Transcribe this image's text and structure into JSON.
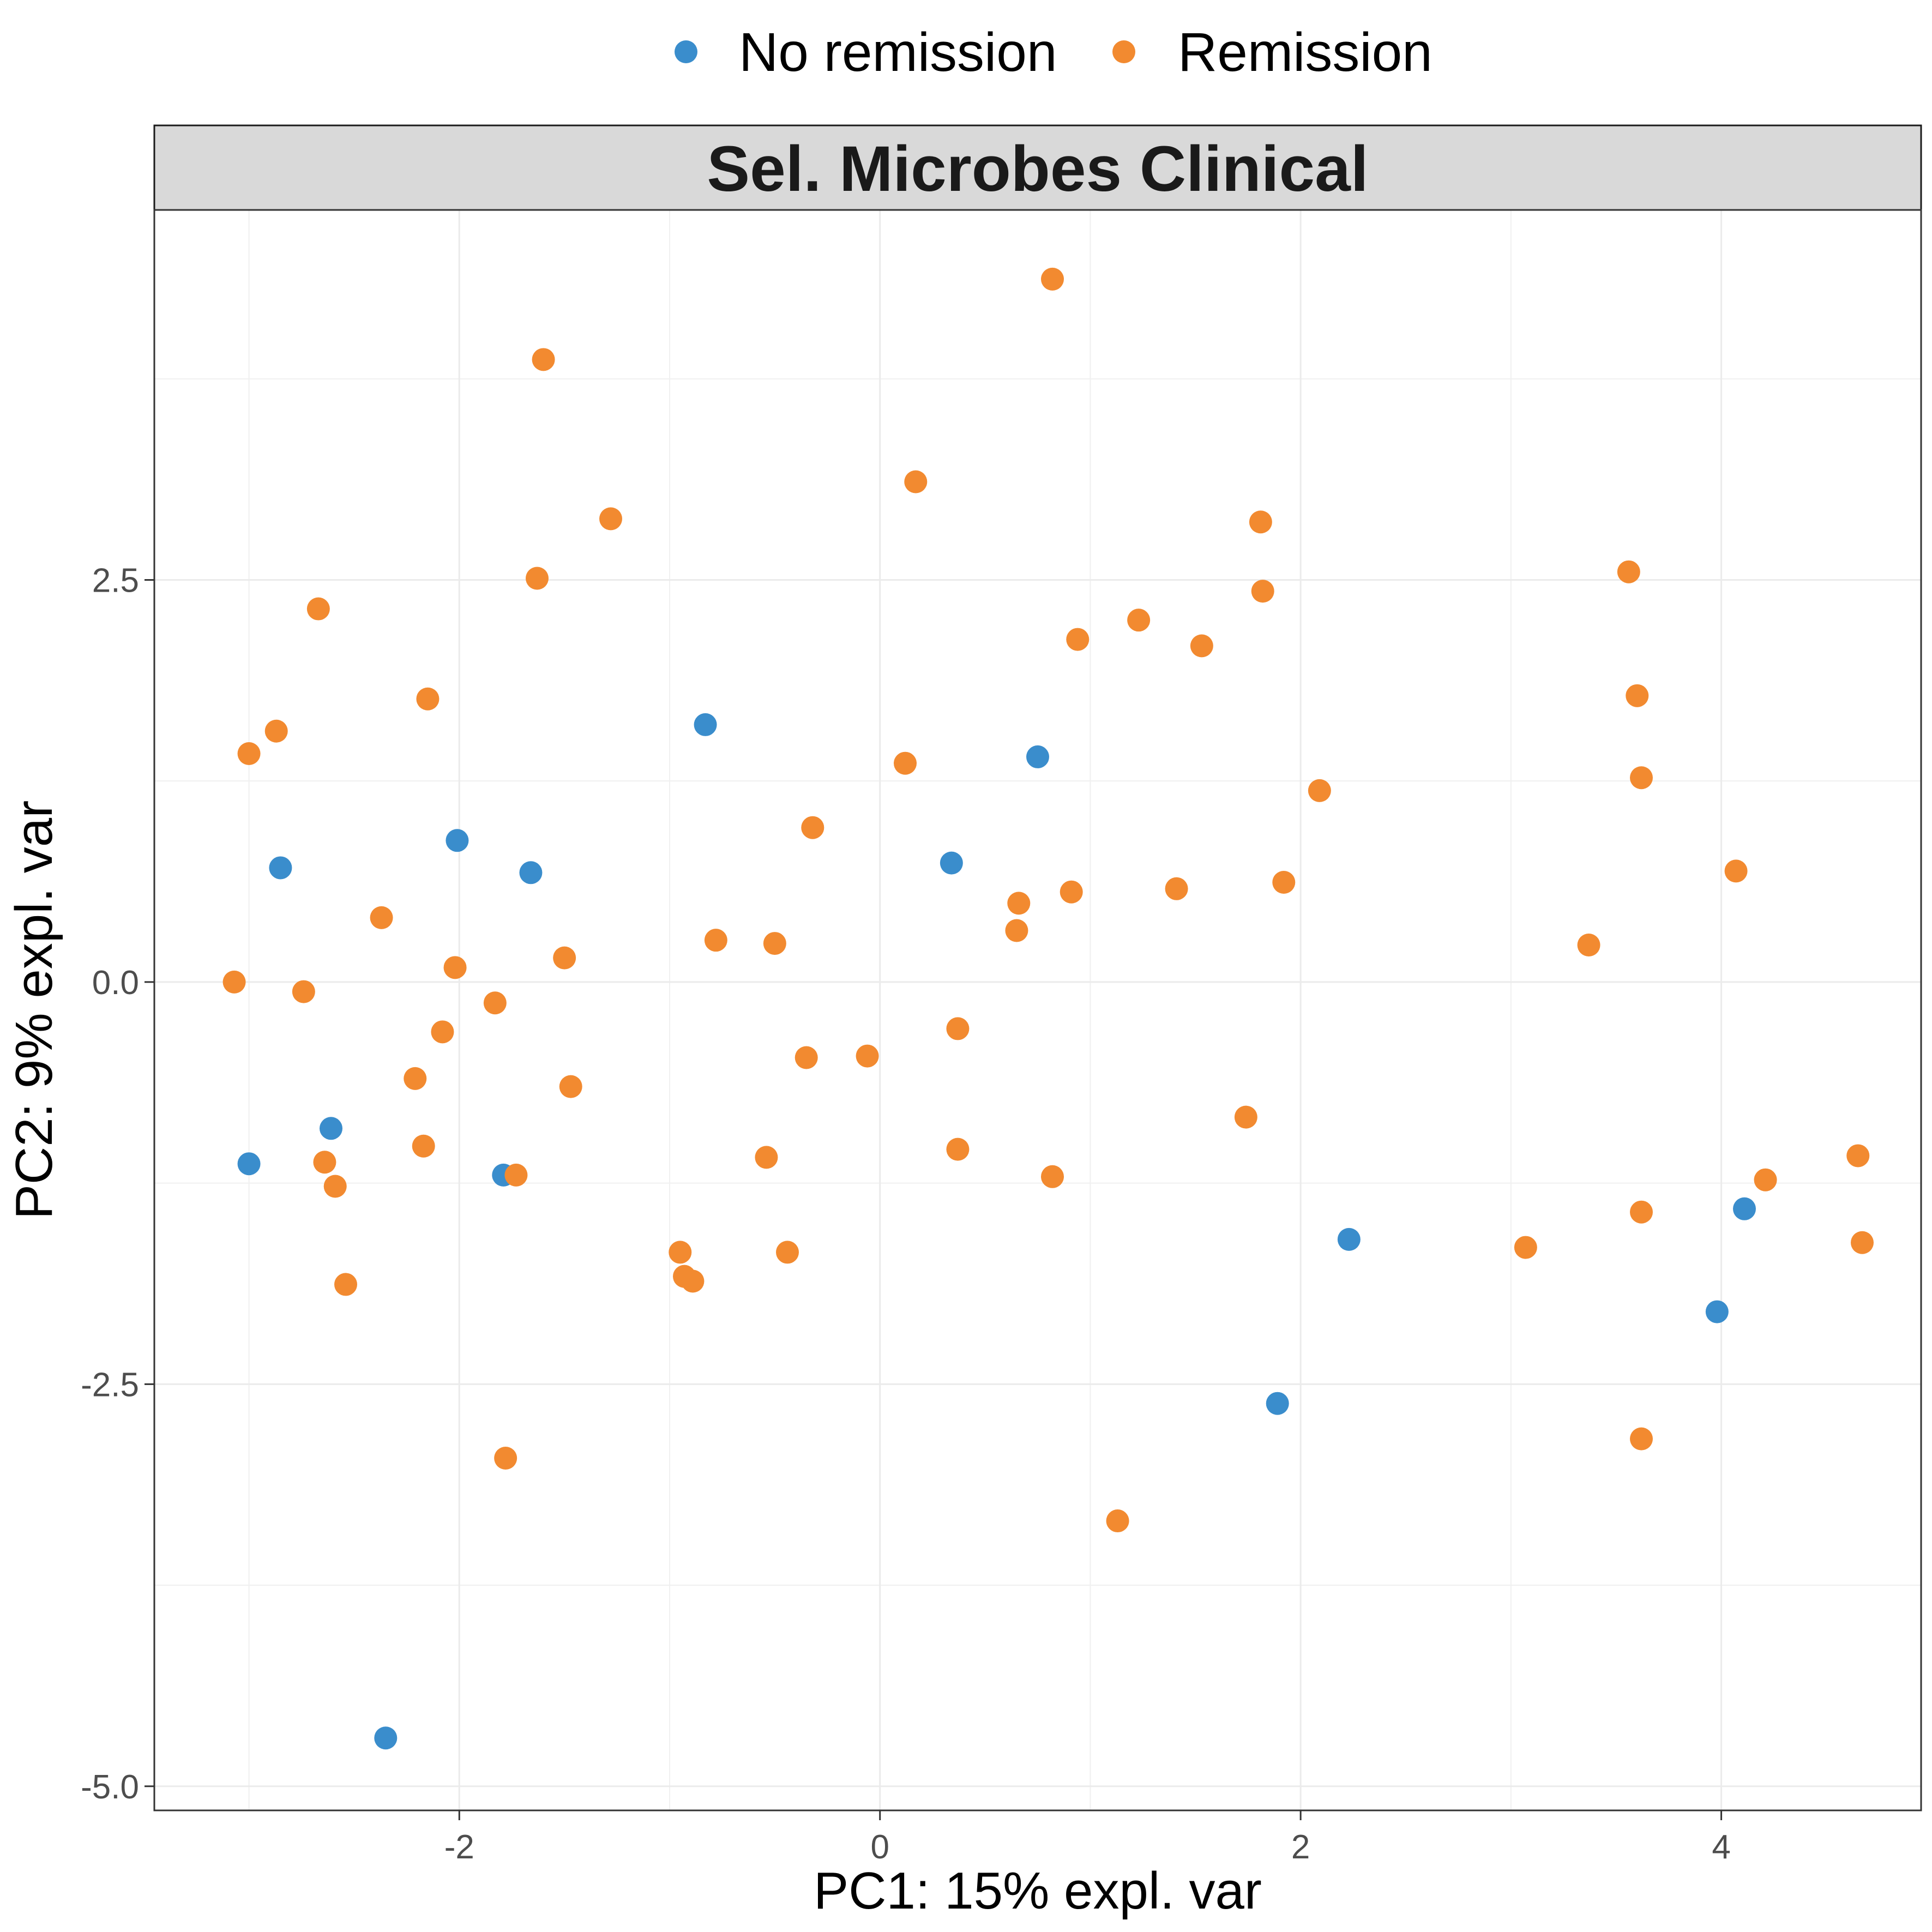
{
  "chart_data": {
    "type": "scatter",
    "title": "Sel. Microbes Clinical",
    "xlabel": "PC1: 15% expl. var",
    "ylabel": "PC2: 9% expl. var",
    "xlim": [
      -3.45,
      4.95
    ],
    "ylim": [
      -5.15,
      4.8
    ],
    "x_ticks": [
      -2,
      0,
      2,
      4
    ],
    "y_ticks": [
      -5.0,
      -2.5,
      0.0,
      2.5
    ],
    "x_tick_labels": [
      "-2",
      "0",
      "2",
      "4"
    ],
    "y_tick_labels": [
      "-5.0",
      "-2.5",
      "0.0",
      "2.5"
    ],
    "grid": true,
    "legend_position": "top",
    "series": [
      {
        "name": "No remission",
        "color": "#3a8dcc",
        "points": [
          [
            -3.0,
            -1.13
          ],
          [
            -2.85,
            0.71
          ],
          [
            -2.61,
            -0.91
          ],
          [
            -2.35,
            -4.7
          ],
          [
            -2.01,
            0.88
          ],
          [
            -1.66,
            0.68
          ],
          [
            -1.79,
            -1.2
          ],
          [
            -0.83,
            1.6
          ],
          [
            0.34,
            0.74
          ],
          [
            0.75,
            1.4
          ],
          [
            2.23,
            -1.6
          ],
          [
            1.89,
            -2.62
          ],
          [
            3.98,
            -2.05
          ],
          [
            4.11,
            -1.41
          ]
        ]
      },
      {
        "name": "Remission",
        "color": "#f28a30",
        "points": [
          [
            -3.07,
            0.0
          ],
          [
            -3.0,
            1.42
          ],
          [
            -2.87,
            1.56
          ],
          [
            -2.74,
            -0.06
          ],
          [
            -2.67,
            2.32
          ],
          [
            -2.64,
            -1.12
          ],
          [
            -2.59,
            -1.27
          ],
          [
            -2.54,
            -1.88
          ],
          [
            -2.37,
            0.4
          ],
          [
            -2.21,
            -0.6
          ],
          [
            -2.17,
            -1.02
          ],
          [
            -2.15,
            1.76
          ],
          [
            -2.08,
            -0.31
          ],
          [
            -2.02,
            0.09
          ],
          [
            -1.83,
            -0.13
          ],
          [
            -1.78,
            -2.96
          ],
          [
            -1.73,
            -1.2
          ],
          [
            -1.6,
            3.87
          ],
          [
            -1.63,
            2.51
          ],
          [
            -1.5,
            0.15
          ],
          [
            -1.47,
            -0.65
          ],
          [
            -1.28,
            2.88
          ],
          [
            -0.95,
            -1.68
          ],
          [
            -0.93,
            -1.83
          ],
          [
            -0.89,
            -1.86
          ],
          [
            -0.78,
            0.26
          ],
          [
            -0.54,
            -1.09
          ],
          [
            -0.5,
            0.24
          ],
          [
            -0.44,
            -1.68
          ],
          [
            -0.35,
            -0.47
          ],
          [
            -0.32,
            0.96
          ],
          [
            -0.06,
            -0.46
          ],
          [
            0.12,
            1.36
          ],
          [
            0.17,
            3.11
          ],
          [
            0.37,
            -0.29
          ],
          [
            0.37,
            -1.04
          ],
          [
            0.65,
            0.32
          ],
          [
            0.66,
            0.49
          ],
          [
            0.82,
            4.37
          ],
          [
            0.82,
            -1.21
          ],
          [
            0.91,
            0.56
          ],
          [
            0.94,
            2.13
          ],
          [
            1.13,
            -3.35
          ],
          [
            1.23,
            2.25
          ],
          [
            1.41,
            0.58
          ],
          [
            1.53,
            2.09
          ],
          [
            1.74,
            -0.84
          ],
          [
            1.81,
            2.86
          ],
          [
            1.82,
            2.43
          ],
          [
            1.92,
            0.62
          ],
          [
            2.09,
            1.19
          ],
          [
            3.07,
            -1.65
          ],
          [
            3.37,
            0.23
          ],
          [
            3.56,
            2.55
          ],
          [
            3.6,
            1.78
          ],
          [
            3.62,
            1.27
          ],
          [
            3.62,
            -1.43
          ],
          [
            3.62,
            -2.84
          ],
          [
            4.07,
            0.69
          ],
          [
            4.21,
            -1.23
          ],
          [
            4.65,
            -1.08
          ],
          [
            4.67,
            -1.62
          ]
        ]
      }
    ]
  }
}
